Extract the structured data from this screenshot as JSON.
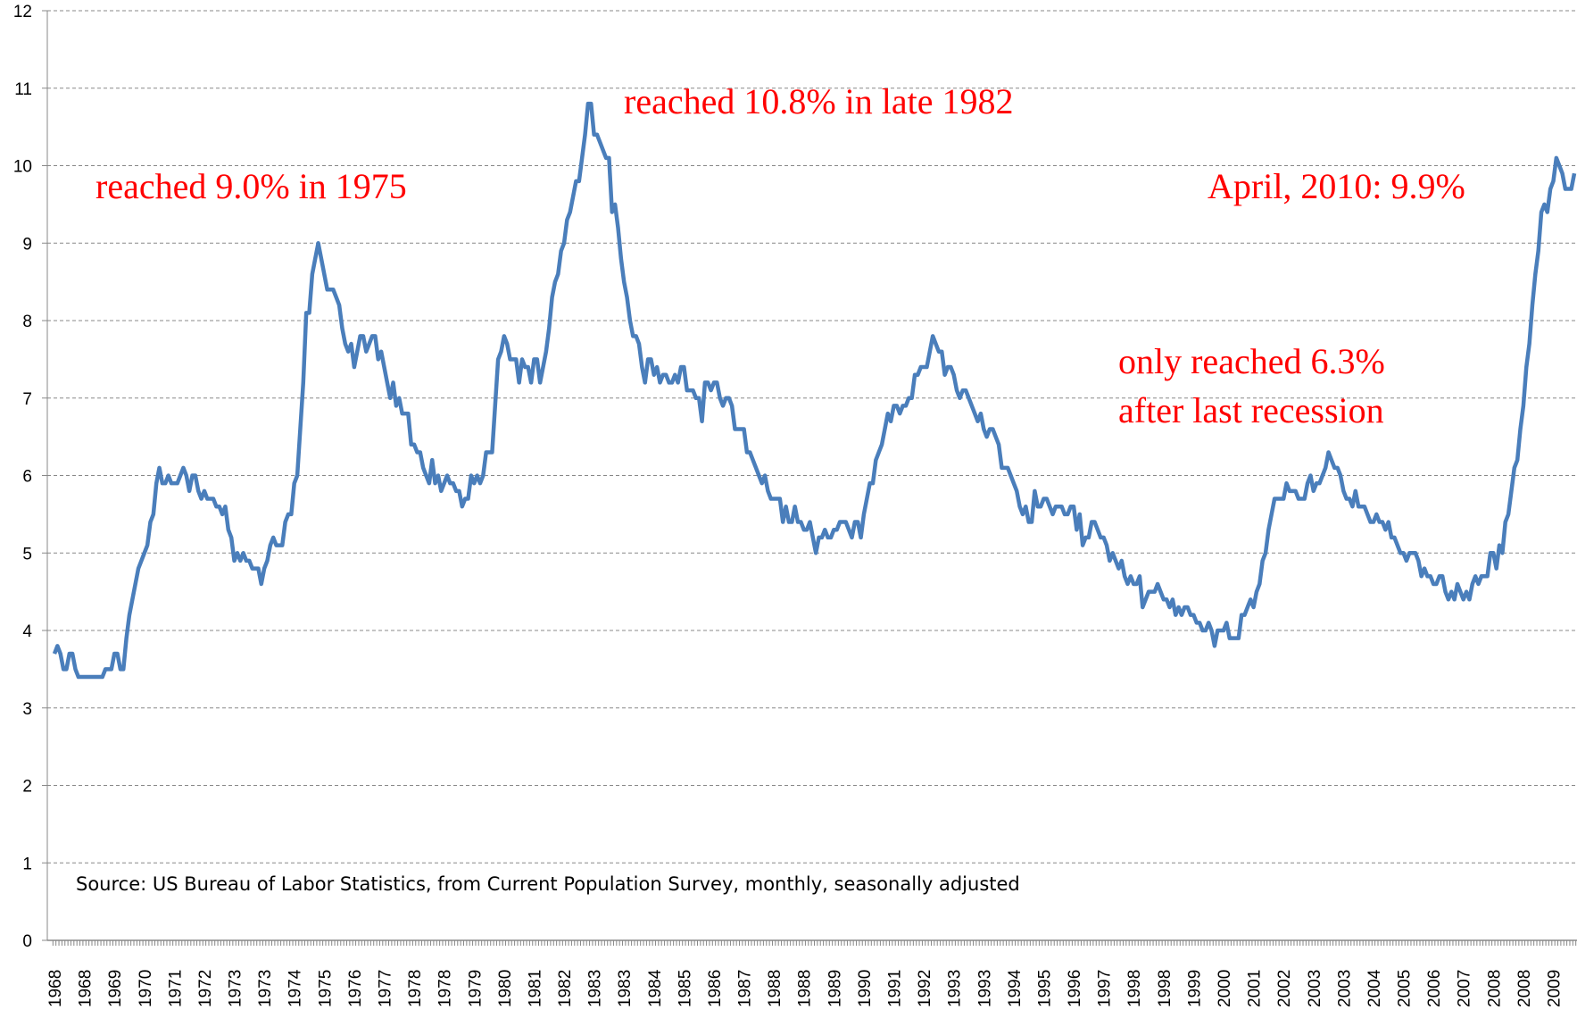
{
  "chart_data": {
    "type": "line",
    "annotations": [
      "reached 9.0% in 1975",
      "reached 10.8% in late 1982",
      "April, 2010: 9.9%",
      "only reached 6.3%",
      "after last recession"
    ],
    "source": "Source: US Bureau of Labor Statistics, from Current Population Survey, monthly, seasonally adjusted",
    "ylim": [
      0,
      12
    ],
    "yticks": [
      0,
      1,
      2,
      3,
      4,
      5,
      6,
      7,
      8,
      9,
      10,
      11,
      12
    ],
    "grid": true,
    "categories": [
      "1968",
      null,
      null,
      null,
      null,
      null,
      null,
      null,
      null,
      null,
      "1968",
      null,
      null,
      null,
      null,
      null,
      null,
      null,
      null,
      null,
      "1969",
      null,
      null,
      null,
      null,
      null,
      null,
      null,
      null,
      null,
      "1970",
      null,
      null,
      null,
      null,
      null,
      null,
      null,
      null,
      null,
      "1971",
      null,
      null,
      null,
      null,
      null,
      null,
      null,
      null,
      null,
      "1972",
      null,
      null,
      null,
      null,
      null,
      null,
      null,
      null,
      null,
      "1973",
      null,
      null,
      null,
      null,
      null,
      null,
      null,
      null,
      null,
      "1973",
      null,
      null,
      null,
      null,
      null,
      null,
      null,
      null,
      null,
      "1974",
      null,
      null,
      null,
      null,
      null,
      null,
      null,
      null,
      null,
      "1975",
      null,
      null,
      null,
      null,
      null,
      null,
      null,
      null,
      null,
      "1976",
      null,
      null,
      null,
      null,
      null,
      null,
      null,
      null,
      null,
      "1977",
      null,
      null,
      null,
      null,
      null,
      null,
      null,
      null,
      null,
      "1978",
      null,
      null,
      null,
      null,
      null,
      null,
      null,
      null,
      null,
      "1978",
      null,
      null,
      null,
      null,
      null,
      null,
      null,
      null,
      null,
      "1979",
      null,
      null,
      null,
      null,
      null,
      null,
      null,
      null,
      null,
      "1980",
      null,
      null,
      null,
      null,
      null,
      null,
      null,
      null,
      null,
      "1981",
      null,
      null,
      null,
      null,
      null,
      null,
      null,
      null,
      null,
      "1982",
      null,
      null,
      null,
      null,
      null,
      null,
      null,
      null,
      null,
      "1983",
      null,
      null,
      null,
      null,
      null,
      null,
      null,
      null,
      null,
      "1983",
      null,
      null,
      null,
      null,
      null,
      null,
      null,
      null,
      null,
      "1984",
      null,
      null,
      null,
      null,
      null,
      null,
      null,
      null,
      null,
      "1985",
      null,
      null,
      null,
      null,
      null,
      null,
      null,
      null,
      null,
      "1986",
      null,
      null,
      null,
      null,
      null,
      null,
      null,
      null,
      null,
      "1987",
      null,
      null,
      null,
      null,
      null,
      null,
      null,
      null,
      null,
      "1988",
      null,
      null,
      null,
      null,
      null,
      null,
      null,
      null,
      null,
      "1988",
      null,
      null,
      null,
      null,
      null,
      null,
      null,
      null,
      null,
      "1989",
      null,
      null,
      null,
      null,
      null,
      null,
      null,
      null,
      null,
      "1990",
      null,
      null,
      null,
      null,
      null,
      null,
      null,
      null,
      null,
      "1991",
      null,
      null,
      null,
      null,
      null,
      null,
      null,
      null,
      null,
      "1992",
      null,
      null,
      null,
      null,
      null,
      null,
      null,
      null,
      null,
      "1993",
      null,
      null,
      null,
      null,
      null,
      null,
      null,
      null,
      null,
      "1993",
      null,
      null,
      null,
      null,
      null,
      null,
      null,
      null,
      null,
      "1994",
      null,
      null,
      null,
      null,
      null,
      null,
      null,
      null,
      null,
      "1995",
      null,
      null,
      null,
      null,
      null,
      null,
      null,
      null,
      null,
      "1996",
      null,
      null,
      null,
      null,
      null,
      null,
      null,
      null,
      null,
      "1997",
      null,
      null,
      null,
      null,
      null,
      null,
      null,
      null,
      null,
      "1998",
      null,
      null,
      null,
      null,
      null,
      null,
      null,
      null,
      null,
      "1998",
      null,
      null,
      null,
      null,
      null,
      null,
      null,
      null,
      null,
      "1999",
      null,
      null,
      null,
      null,
      null,
      null,
      null,
      null,
      null,
      "2000",
      null,
      null,
      null,
      null,
      null,
      null,
      null,
      null,
      null,
      "2001",
      null,
      null,
      null,
      null,
      null,
      null,
      null,
      null,
      null,
      "2002",
      null,
      null,
      null,
      null,
      null,
      null,
      null,
      null,
      null,
      "2003",
      null,
      null,
      null,
      null,
      null,
      null,
      null,
      null,
      null,
      "2003",
      null,
      null,
      null,
      null,
      null,
      null,
      null,
      null,
      null,
      "2004",
      null,
      null,
      null,
      null,
      null,
      null,
      null,
      null,
      null,
      "2005",
      null,
      null,
      null,
      null,
      null,
      null,
      null,
      null,
      null,
      "2006",
      null,
      null,
      null,
      null,
      null,
      null,
      null,
      null,
      null,
      "2007",
      null,
      null,
      null,
      null,
      null,
      null,
      null,
      null,
      null,
      "2008",
      null,
      null,
      null,
      null,
      null,
      null,
      null,
      null,
      null,
      "2008",
      null,
      null,
      null,
      null,
      null,
      null,
      null,
      null,
      null,
      "2009",
      null,
      null,
      null,
      null,
      null,
      null,
      null
    ],
    "series": [
      {
        "color": "#4a7ebb",
        "values": [
          3.7,
          3.8,
          3.7,
          3.5,
          3.5,
          3.7,
          3.7,
          3.5,
          3.4,
          3.4,
          3.4,
          3.4,
          3.4,
          3.4,
          3.4,
          3.4,
          3.4,
          3.5,
          3.5,
          3.5,
          3.7,
          3.7,
          3.5,
          3.5,
          3.9,
          4.2,
          4.4,
          4.6,
          4.8,
          4.9,
          5.0,
          5.1,
          5.4,
          5.5,
          5.9,
          6.1,
          5.9,
          5.9,
          6.0,
          5.9,
          5.9,
          5.9,
          6.0,
          6.1,
          6.0,
          5.8,
          6.0,
          6.0,
          5.8,
          5.7,
          5.8,
          5.7,
          5.7,
          5.7,
          5.6,
          5.6,
          5.5,
          5.6,
          5.3,
          5.2,
          4.9,
          5.0,
          4.9,
          5.0,
          4.9,
          4.9,
          4.8,
          4.8,
          4.8,
          4.6,
          4.8,
          4.9,
          5.1,
          5.2,
          5.1,
          5.1,
          5.1,
          5.4,
          5.5,
          5.5,
          5.9,
          6.0,
          6.6,
          7.2,
          8.1,
          8.1,
          8.6,
          8.8,
          9.0,
          8.8,
          8.6,
          8.4,
          8.4,
          8.4,
          8.3,
          8.2,
          7.9,
          7.7,
          7.6,
          7.7,
          7.4,
          7.6,
          7.8,
          7.8,
          7.6,
          7.7,
          7.8,
          7.8,
          7.5,
          7.6,
          7.4,
          7.2,
          7.0,
          7.2,
          6.9,
          7.0,
          6.8,
          6.8,
          6.8,
          6.4,
          6.4,
          6.3,
          6.3,
          6.1,
          6.0,
          5.9,
          6.2,
          5.9,
          6.0,
          5.8,
          5.9,
          6.0,
          5.9,
          5.9,
          5.8,
          5.8,
          5.6,
          5.7,
          5.7,
          6.0,
          5.9,
          6.0,
          5.9,
          6.0,
          6.3,
          6.3,
          6.3,
          6.9,
          7.5,
          7.6,
          7.8,
          7.7,
          7.5,
          7.5,
          7.5,
          7.2,
          7.5,
          7.4,
          7.4,
          7.2,
          7.5,
          7.5,
          7.2,
          7.4,
          7.6,
          7.9,
          8.3,
          8.5,
          8.6,
          8.9,
          9.0,
          9.3,
          9.4,
          9.6,
          9.8,
          9.8,
          10.1,
          10.4,
          10.8,
          10.8,
          10.4,
          10.4,
          10.3,
          10.2,
          10.1,
          10.1,
          9.4,
          9.5,
          9.2,
          8.8,
          8.5,
          8.3,
          8.0,
          7.8,
          7.8,
          7.7,
          7.4,
          7.2,
          7.5,
          7.5,
          7.3,
          7.4,
          7.2,
          7.3,
          7.3,
          7.2,
          7.2,
          7.3,
          7.2,
          7.4,
          7.4,
          7.1,
          7.1,
          7.1,
          7.0,
          7.0,
          6.7,
          7.2,
          7.2,
          7.1,
          7.2,
          7.2,
          7.0,
          6.9,
          7.0,
          7.0,
          6.9,
          6.6,
          6.6,
          6.6,
          6.6,
          6.3,
          6.3,
          6.2,
          6.1,
          6.0,
          5.9,
          6.0,
          5.8,
          5.7,
          5.7,
          5.7,
          5.7,
          5.4,
          5.6,
          5.4,
          5.4,
          5.6,
          5.4,
          5.4,
          5.3,
          5.3,
          5.4,
          5.2,
          5.0,
          5.2,
          5.2,
          5.3,
          5.2,
          5.2,
          5.3,
          5.3,
          5.4,
          5.4,
          5.4,
          5.3,
          5.2,
          5.4,
          5.4,
          5.2,
          5.5,
          5.7,
          5.9,
          5.9,
          6.2,
          6.3,
          6.4,
          6.6,
          6.8,
          6.7,
          6.9,
          6.9,
          6.8,
          6.9,
          6.9,
          7.0,
          7.0,
          7.3,
          7.3,
          7.4,
          7.4,
          7.4,
          7.6,
          7.8,
          7.7,
          7.6,
          7.6,
          7.3,
          7.4,
          7.4,
          7.3,
          7.1,
          7.0,
          7.1,
          7.1,
          7.0,
          6.9,
          6.8,
          6.7,
          6.8,
          6.6,
          6.5,
          6.6,
          6.6,
          6.5,
          6.4,
          6.1,
          6.1,
          6.1,
          6.0,
          5.9,
          5.8,
          5.6,
          5.5,
          5.6,
          5.4,
          5.4,
          5.8,
          5.6,
          5.6,
          5.7,
          5.7,
          5.6,
          5.5,
          5.6,
          5.6,
          5.6,
          5.5,
          5.5,
          5.6,
          5.6,
          5.3,
          5.5,
          5.1,
          5.2,
          5.2,
          5.4,
          5.4,
          5.3,
          5.2,
          5.2,
          5.1,
          4.9,
          5.0,
          4.9,
          4.8,
          4.9,
          4.7,
          4.6,
          4.7,
          4.6,
          4.6,
          4.7,
          4.3,
          4.4,
          4.5,
          4.5,
          4.5,
          4.6,
          4.5,
          4.4,
          4.4,
          4.3,
          4.4,
          4.2,
          4.3,
          4.2,
          4.3,
          4.3,
          4.2,
          4.2,
          4.1,
          4.1,
          4.0,
          4.0,
          4.1,
          4.0,
          3.8,
          4.0,
          4.0,
          4.0,
          4.1,
          3.9,
          3.9,
          3.9,
          3.9,
          4.2,
          4.2,
          4.3,
          4.4,
          4.3,
          4.5,
          4.6,
          4.9,
          5.0,
          5.3,
          5.5,
          5.7,
          5.7,
          5.7,
          5.7,
          5.9,
          5.8,
          5.8,
          5.8,
          5.7,
          5.7,
          5.7,
          5.9,
          6.0,
          5.8,
          5.9,
          5.9,
          6.0,
          6.1,
          6.3,
          6.2,
          6.1,
          6.1,
          6.0,
          5.8,
          5.7,
          5.7,
          5.6,
          5.8,
          5.6,
          5.6,
          5.6,
          5.5,
          5.4,
          5.4,
          5.5,
          5.4,
          5.4,
          5.3,
          5.4,
          5.2,
          5.2,
          5.1,
          5.0,
          5.0,
          4.9,
          5.0,
          5.0,
          5.0,
          4.9,
          4.7,
          4.8,
          4.7,
          4.7,
          4.6,
          4.6,
          4.7,
          4.7,
          4.5,
          4.4,
          4.5,
          4.4,
          4.6,
          4.5,
          4.4,
          4.5,
          4.4,
          4.6,
          4.7,
          4.6,
          4.7,
          4.7,
          4.7,
          5.0,
          5.0,
          4.8,
          5.1,
          5.0,
          5.4,
          5.5,
          5.8,
          6.1,
          6.2,
          6.6,
          6.9,
          7.4,
          7.7,
          8.2,
          8.6,
          8.9,
          9.4,
          9.5,
          9.4,
          9.7,
          9.8,
          10.1,
          10.0,
          9.9,
          9.7,
          9.7,
          9.7,
          9.9
        ]
      }
    ]
  }
}
